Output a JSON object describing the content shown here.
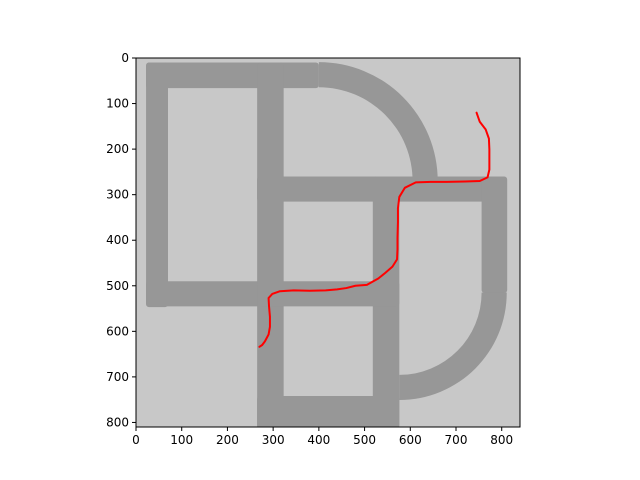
{
  "colors": {
    "background": "#c8c8c8",
    "road": "#979797",
    "path": "#ff0000",
    "axis": "#000000"
  },
  "chart_data": {
    "type": "image",
    "title": "",
    "xlabel": "",
    "ylabel": "",
    "xlim": [
      0,
      840
    ],
    "ylim": [
      810,
      0
    ],
    "x_ticks": [
      0,
      100,
      200,
      300,
      400,
      500,
      600,
      700,
      800
    ],
    "y_ticks": [
      0,
      100,
      200,
      300,
      400,
      500,
      600,
      700,
      800
    ],
    "grid": false,
    "roads": [
      {
        "name": "top-road",
        "type": "rect",
        "x": 22,
        "y": 10,
        "w": 378,
        "h": 56
      },
      {
        "name": "top-right-arc",
        "type": "arc",
        "cx": 400,
        "cy": 270,
        "r_outer": 260,
        "r_inner": 205
      },
      {
        "name": "left-road",
        "type": "rect",
        "x": 22,
        "y": 10,
        "w": 48,
        "h": 535
      },
      {
        "name": "bottom-left-road",
        "type": "rect",
        "x": 22,
        "y": 490,
        "w": 300,
        "h": 55
      },
      {
        "name": "middle-vertical-road",
        "type": "rect",
        "x": 265,
        "y": 10,
        "w": 58,
        "h": 810
      },
      {
        "name": "middle-horizontal-road",
        "type": "rect",
        "x": 265,
        "y": 260,
        "w": 545,
        "h": 55
      },
      {
        "name": "right-center-road",
        "type": "rect",
        "x": 518,
        "y": 260,
        "w": 58,
        "h": 560
      },
      {
        "name": "right-road",
        "type": "rect",
        "x": 756,
        "y": 260,
        "w": 56,
        "h": 255
      },
      {
        "name": "bottom-right-arc",
        "type": "arc",
        "cx": 576,
        "cy": 515,
        "r_outer": 235,
        "r_inner": 180
      },
      {
        "name": "lower-horizontal-road",
        "type": "rect",
        "x": 265,
        "y": 490,
        "w": 311,
        "h": 55
      },
      {
        "name": "bottom-road",
        "type": "rect",
        "x": 265,
        "y": 742,
        "w": 311,
        "h": 70
      }
    ],
    "series": [
      {
        "points": [
          [
            745,
            120
          ],
          [
            752,
            140
          ],
          [
            765,
            157
          ],
          [
            772,
            177
          ],
          [
            773,
            200
          ],
          [
            773,
            225
          ],
          [
            773,
            245
          ],
          [
            769,
            262
          ],
          [
            752,
            270
          ],
          [
            720,
            271
          ],
          [
            680,
            272
          ],
          [
            645,
            272
          ],
          [
            612,
            273
          ],
          [
            588,
            285
          ],
          [
            576,
            305
          ],
          [
            573,
            330
          ],
          [
            573,
            360
          ],
          [
            572,
            395
          ],
          [
            572,
            420
          ],
          [
            571,
            442
          ],
          [
            561,
            458
          ],
          [
            545,
            472
          ],
          [
            530,
            484
          ],
          [
            505,
            498
          ],
          [
            480,
            500
          ],
          [
            460,
            505
          ],
          [
            440,
            508
          ],
          [
            415,
            510
          ],
          [
            380,
            511
          ],
          [
            345,
            510
          ],
          [
            315,
            512
          ],
          [
            298,
            518
          ],
          [
            290,
            527
          ],
          [
            291,
            545
          ],
          [
            293,
            568
          ],
          [
            293,
            590
          ],
          [
            290,
            607
          ],
          [
            282,
            622
          ],
          [
            276,
            630
          ],
          [
            270,
            634
          ]
        ]
      }
    ]
  }
}
